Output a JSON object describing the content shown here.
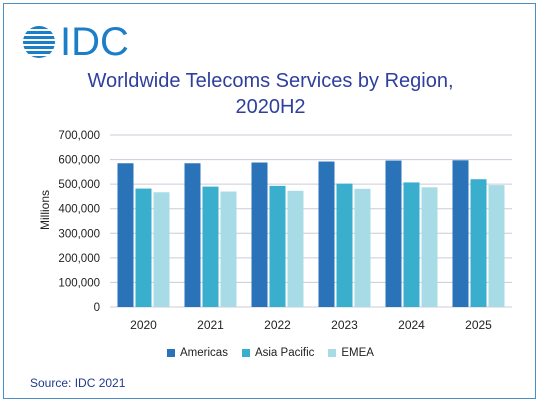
{
  "logo": {
    "text": "IDC"
  },
  "title_line1": "Worldwide Telecoms Services by Region,",
  "title_line2": "2020H2",
  "source": "Source: IDC 2021",
  "chart_data": {
    "type": "bar",
    "categories": [
      "2020",
      "2021",
      "2022",
      "2023",
      "2024",
      "2025"
    ],
    "series": [
      {
        "name": "Americas",
        "color": "#2a73b8",
        "values": [
          585000,
          585000,
          588000,
          592000,
          596000,
          597000
        ]
      },
      {
        "name": "Asia Pacific",
        "color": "#3aaecd",
        "values": [
          482000,
          490000,
          493000,
          502000,
          507000,
          520000
        ]
      },
      {
        "name": "EMEA",
        "color": "#a7dce7",
        "values": [
          467000,
          470000,
          473000,
          481000,
          487000,
          496000
        ]
      }
    ],
    "ylabel": "Millions",
    "xlabel": "",
    "ylim": [
      0,
      700000
    ],
    "yticks": [
      "0",
      "100,000",
      "200,000",
      "300,000",
      "400,000",
      "500,000",
      "600,000",
      "700,000"
    ],
    "grid": true,
    "legend": "bottom"
  }
}
